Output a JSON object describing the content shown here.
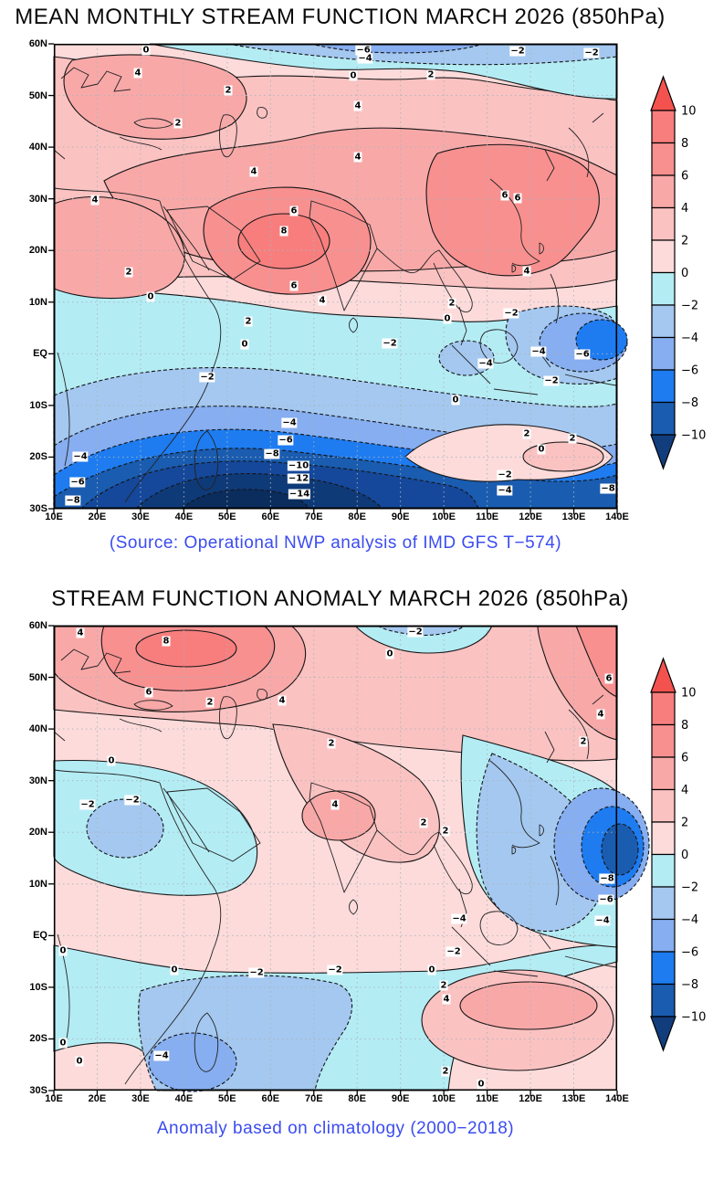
{
  "page": {
    "background": "#ffffff"
  },
  "band_colors": {
    "p10": "#f4524e",
    "p8_10": "#f87e7e",
    "p6_8": "#f89090",
    "p4_6": "#f9a8a8",
    "p2_4": "#fbc2c2",
    "p0_2": "#fddbdb",
    "m2_0": "#b4ecf4",
    "m4_2": "#a4c8f0",
    "m6_4": "#86aef0",
    "m8_6": "#1e7cf0",
    "m10_8": "#1a5cb0",
    "m12_10": "#15489a",
    "m14_12": "#0f3a78",
    "m16_14": "#0a2d5e",
    "below10": "#123d7d"
  },
  "charts": [
    {
      "id": "mean",
      "title": "MEAN MONTHLY STREAM FUNCTION MARCH 2026 (850hPa)",
      "caption": "(Source: Operational NWP analysis of IMD GFS T−574)",
      "caption_color": "#3b4cf0",
      "chart_data": {
        "type": "heatmap",
        "subtype": "filled-contour-map",
        "title": "MEAN MONTHLY STREAM FUNCTION MARCH 2026 (850hPa)",
        "region": {
          "lon_min": "10E",
          "lon_max": "140E",
          "lat_min": "30S",
          "lat_max": "60N"
        },
        "x_ticks": [
          "10E",
          "20E",
          "30E",
          "40E",
          "50E",
          "60E",
          "70E",
          "80E",
          "90E",
          "100E",
          "110E",
          "120E",
          "130E",
          "140E"
        ],
        "y_ticks": [
          "60N",
          "50N",
          "40N",
          "30N",
          "20N",
          "10N",
          "EQ",
          "10S",
          "20S",
          "30S"
        ],
        "grid": "dotted 10-degree graticule",
        "contour_interval": 2,
        "line_style": {
          "positive": "solid",
          "negative": "dashed"
        },
        "colorbar": {
          "tick_labels": [
            "10",
            "8",
            "6",
            "4",
            "2",
            "0",
            "-2",
            "-4",
            "-6",
            "-8",
            "-10"
          ],
          "segment_colors_top_to_bottom": [
            "#f87e7e",
            "#f89090",
            "#f9a8a8",
            "#fbc2c2",
            "#fddbdb",
            "#b4ecf4",
            "#a4c8f0",
            "#86aef0",
            "#1e7cf0",
            "#1a5cb0"
          ],
          "arrow_top_color": "#f4524e",
          "arrow_bottom_color": "#123d7d"
        },
        "extremes": {
          "max": {
            "value": 8,
            "near": "62E, 20N"
          },
          "min": {
            "value": -14,
            "near": "40E–75E along 28S–30S"
          }
        },
        "contour_labels": [
          {
            "t": "0",
            "x": 101,
            "y": 7
          },
          {
            "t": "-6",
            "x": 339,
            "y": 7
          },
          {
            "t": "-4",
            "x": 341,
            "y": 16
          },
          {
            "t": "-2",
            "x": 508,
            "y": 8
          },
          {
            "t": "-2",
            "x": 589,
            "y": 10
          },
          {
            "t": "4",
            "x": 92,
            "y": 32
          },
          {
            "t": "0",
            "x": 328,
            "y": 35
          },
          {
            "t": "2",
            "x": 413,
            "y": 34
          },
          {
            "t": "2",
            "x": 191,
            "y": 51
          },
          {
            "t": "4",
            "x": 333,
            "y": 68
          },
          {
            "t": "2",
            "x": 136,
            "y": 87
          },
          {
            "t": "4",
            "x": 333,
            "y": 124
          },
          {
            "t": "4",
            "x": 219,
            "y": 140
          },
          {
            "t": "6",
            "x": 494,
            "y": 166
          },
          {
            "t": "6",
            "x": 508,
            "y": 169
          },
          {
            "t": "4",
            "x": 45,
            "y": 171
          },
          {
            "t": "6",
            "x": 263,
            "y": 183
          },
          {
            "t": "8",
            "x": 252,
            "y": 205
          },
          {
            "t": "4",
            "x": 518,
            "y": 249
          },
          {
            "t": "2",
            "x": 82,
            "y": 250
          },
          {
            "t": "6",
            "x": 263,
            "y": 265
          },
          {
            "t": "0",
            "x": 106,
            "y": 277
          },
          {
            "t": "4",
            "x": 294,
            "y": 281
          },
          {
            "t": "2",
            "x": 436,
            "y": 284
          },
          {
            "t": "-2",
            "x": 501,
            "y": 295
          },
          {
            "t": "0",
            "x": 431,
            "y": 301
          },
          {
            "t": "2",
            "x": 213,
            "y": 304
          },
          {
            "t": "0",
            "x": 209,
            "y": 329
          },
          {
            "t": "-2",
            "x": 368,
            "y": 328
          },
          {
            "t": "-4",
            "x": 531,
            "y": 337
          },
          {
            "t": "-6",
            "x": 579,
            "y": 340
          },
          {
            "t": "-4",
            "x": 473,
            "y": 350
          },
          {
            "t": "-2",
            "x": 168,
            "y": 365
          },
          {
            "t": "-2",
            "x": 545,
            "y": 369
          },
          {
            "t": "0",
            "x": 440,
            "y": 390
          },
          {
            "t": "-4",
            "x": 258,
            "y": 415
          },
          {
            "t": "2",
            "x": 518,
            "y": 427
          },
          {
            "t": "2",
            "x": 568,
            "y": 432
          },
          {
            "t": "-6",
            "x": 254,
            "y": 434
          },
          {
            "t": "0",
            "x": 534,
            "y": 444
          },
          {
            "t": "-8",
            "x": 239,
            "y": 449
          },
          {
            "t": "-4",
            "x": 29,
            "y": 452
          },
          {
            "t": "-10",
            "x": 268,
            "y": 462
          },
          {
            "t": "-2",
            "x": 494,
            "y": 472
          },
          {
            "t": "-12",
            "x": 268,
            "y": 476
          },
          {
            "t": "-6",
            "x": 26,
            "y": 480
          },
          {
            "t": "-8",
            "x": 607,
            "y": 487
          },
          {
            "t": "-4",
            "x": 494,
            "y": 489
          },
          {
            "t": "-14",
            "x": 269,
            "y": 493
          },
          {
            "t": "-8",
            "x": 21,
            "y": 500
          }
        ]
      }
    },
    {
      "id": "anomaly",
      "title": "STREAM FUNCTION ANOMALY MARCH 2026 (850hPa)",
      "caption": "Anomaly based on climatology (2000−2018)",
      "caption_color": "#3b4cf0",
      "chart_data": {
        "type": "heatmap",
        "subtype": "filled-contour-map",
        "title": "STREAM FUNCTION ANOMALY MARCH 2026 (850hPa)",
        "region": {
          "lon_min": "10E",
          "lon_max": "140E",
          "lat_min": "30S",
          "lat_max": "60N"
        },
        "x_ticks": [
          "10E",
          "20E",
          "30E",
          "40E",
          "50E",
          "60E",
          "70E",
          "80E",
          "90E",
          "100E",
          "110E",
          "120E",
          "130E",
          "140E"
        ],
        "y_ticks": [
          "60N",
          "50N",
          "40N",
          "30N",
          "20N",
          "10N",
          "EQ",
          "10S",
          "20S",
          "30S"
        ],
        "grid": "dotted 10-degree graticule",
        "contour_interval": 2,
        "line_style": {
          "positive": "solid",
          "negative": "dashed"
        },
        "colorbar": {
          "tick_labels": [
            "10",
            "8",
            "6",
            "4",
            "2",
            "0",
            "-2",
            "-4",
            "-6",
            "-8",
            "-10"
          ],
          "segment_colors_top_to_bottom": [
            "#f87e7e",
            "#f89090",
            "#f9a8a8",
            "#fbc2c2",
            "#fddbdb",
            "#b4ecf4",
            "#a4c8f0",
            "#86aef0",
            "#1e7cf0",
            "#1a5cb0"
          ],
          "arrow_top_color": "#f4524e",
          "arrow_bottom_color": "#123d7d"
        },
        "extremes": {
          "max": {
            "value": 8,
            "near": "35E, 55N"
          },
          "min": {
            "value": -8,
            "near": "138E, 12N"
          }
        },
        "contour_labels": [
          {
            "t": "4",
            "x": 29,
            "y": 8
          },
          {
            "t": "-2",
            "x": 396,
            "y": 7
          },
          {
            "t": "8",
            "x": 123,
            "y": 17
          },
          {
            "t": "0",
            "x": 368,
            "y": 31
          },
          {
            "t": "6",
            "x": 608,
            "y": 58
          },
          {
            "t": "6",
            "x": 104,
            "y": 73
          },
          {
            "t": "2",
            "x": 171,
            "y": 84
          },
          {
            "t": "4",
            "x": 250,
            "y": 82
          },
          {
            "t": "4",
            "x": 599,
            "y": 97
          },
          {
            "t": "2",
            "x": 580,
            "y": 127
          },
          {
            "t": "2",
            "x": 304,
            "y": 129
          },
          {
            "t": "0",
            "x": 63,
            "y": 148
          },
          {
            "t": "-2",
            "x": 86,
            "y": 191
          },
          {
            "t": "-2",
            "x": 37,
            "y": 196
          },
          {
            "t": "4",
            "x": 308,
            "y": 196
          },
          {
            "t": "2",
            "x": 405,
            "y": 216
          },
          {
            "t": "2",
            "x": 429,
            "y": 225
          },
          {
            "t": "-8",
            "x": 606,
            "y": 277
          },
          {
            "t": "-6",
            "x": 605,
            "y": 300
          },
          {
            "t": "-4",
            "x": 601,
            "y": 323
          },
          {
            "t": "-4",
            "x": 444,
            "y": 321
          },
          {
            "t": "0",
            "x": 10,
            "y": 356
          },
          {
            "t": "-2",
            "x": 438,
            "y": 357
          },
          {
            "t": "0",
            "x": 132,
            "y": 377
          },
          {
            "t": "-2",
            "x": 222,
            "y": 380
          },
          {
            "t": "-2",
            "x": 308,
            "y": 377
          },
          {
            "t": "0",
            "x": 414,
            "y": 377
          },
          {
            "t": "2",
            "x": 427,
            "y": 394
          },
          {
            "t": "4",
            "x": 430,
            "y": 409
          },
          {
            "t": "0",
            "x": 10,
            "y": 457
          },
          {
            "t": "-4",
            "x": 118,
            "y": 471
          },
          {
            "t": "0",
            "x": 28,
            "y": 477
          },
          {
            "t": "2",
            "x": 429,
            "y": 488
          },
          {
            "t": "0",
            "x": 468,
            "y": 502
          }
        ]
      }
    }
  ]
}
